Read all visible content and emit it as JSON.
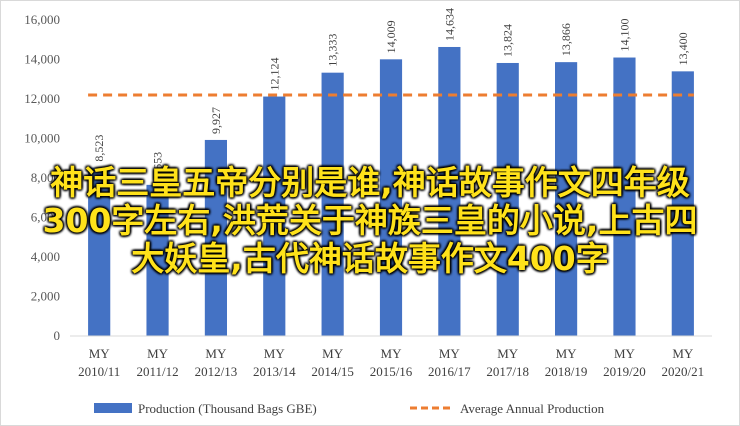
{
  "chart_data": {
    "type": "bar",
    "categories": [
      [
        "MY",
        "2010/11"
      ],
      [
        "MY",
        "2011/12"
      ],
      [
        "MY",
        "2012/13"
      ],
      [
        "MY",
        "2013/14"
      ],
      [
        "MY",
        "2014/15"
      ],
      [
        "MY",
        "2015/16"
      ],
      [
        "MY",
        "2016/17"
      ],
      [
        "MY",
        "2017/18"
      ],
      [
        "MY",
        "2018/19"
      ],
      [
        "MY",
        "2019/20"
      ],
      [
        "MY",
        "2020/21"
      ]
    ],
    "series": [
      {
        "name": "Production (Thousand Bags GBE)",
        "type": "bar",
        "color": "#4472c4",
        "values": [
          8523,
          7653,
          9927,
          12124,
          13333,
          14009,
          14634,
          13824,
          13866,
          14100,
          13400
        ],
        "labels": [
          "8,523",
          "7,653",
          "9,927",
          "12,124",
          "13,333",
          "14,009",
          "14,634",
          "13,824",
          "13,866",
          "14,100",
          "13,400"
        ]
      },
      {
        "name": "Average Annual Production",
        "type": "line",
        "style": "dashed",
        "color": "#ed7d31",
        "value": 12200
      }
    ],
    "ylim": [
      0,
      16000
    ],
    "yticks": [
      "0",
      "2,000",
      "4,000",
      "6,000",
      "8,000",
      "10,000",
      "12,000",
      "14,000",
      "16,000"
    ],
    "grid": false,
    "legend": "bottom"
  },
  "overlay_text": "神话三皇五帝分别是谁,神话故事作文四年级300字左右,洪荒关于神族三皇的小说,上古四大妖皇,古代神话故事作文400字"
}
